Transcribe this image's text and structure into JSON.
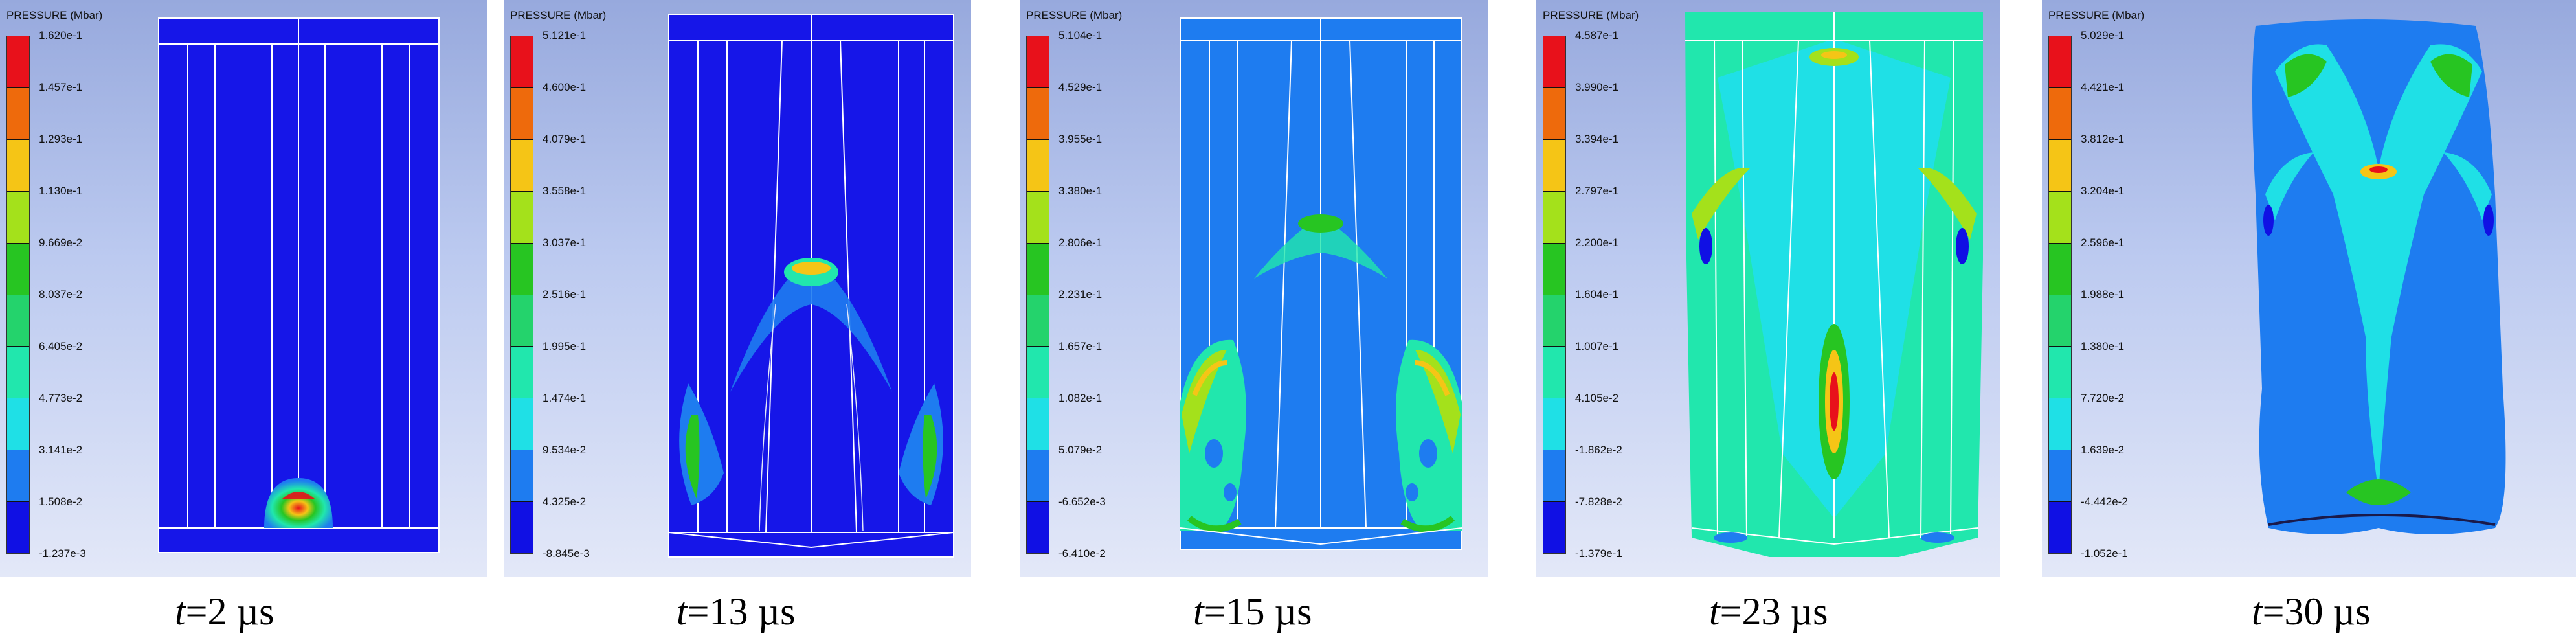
{
  "colorbar_title": "PRESSURE (Mbar)",
  "colors": [
    "#e8111b",
    "#ee6a0c",
    "#f5c516",
    "#a4e11b",
    "#27c522",
    "#24d36c",
    "#21e7ad",
    "#1fe0e6",
    "#1e7cf0",
    "#1010e4"
  ],
  "panels": [
    {
      "id": "t2",
      "time_label": "=2 µs",
      "ticks": [
        "1.620e-1",
        "1.457e-1",
        "1.293e-1",
        "1.130e-1",
        "9.669e-2",
        "8.037e-2",
        "6.405e-2",
        "4.773e-2",
        "3.141e-2",
        "1.508e-2",
        "-1.237e-3"
      ]
    },
    {
      "id": "t13",
      "time_label": "=13 µs",
      "ticks": [
        "5.121e-1",
        "4.600e-1",
        "4.079e-1",
        "3.558e-1",
        "3.037e-1",
        "2.516e-1",
        "1.995e-1",
        "1.474e-1",
        "9.534e-2",
        "4.325e-2",
        "-8.845e-3"
      ]
    },
    {
      "id": "t15",
      "time_label": "=15 µs",
      "ticks": [
        "5.104e-1",
        "4.529e-1",
        "3.955e-1",
        "3.380e-1",
        "2.806e-1",
        "2.231e-1",
        "1.657e-1",
        "1.082e-1",
        "5.079e-2",
        "-6.652e-3",
        "-6.410e-2"
      ]
    },
    {
      "id": "t23",
      "time_label": "=23 µs",
      "ticks": [
        "4.587e-1",
        "3.990e-1",
        "3.394e-1",
        "2.797e-1",
        "2.200e-1",
        "1.604e-1",
        "1.007e-1",
        "4.105e-2",
        "-1.862e-2",
        "-7.828e-2",
        "-1.379e-1"
      ]
    },
    {
      "id": "t30",
      "time_label": "=30 µs",
      "ticks": [
        "5.029e-1",
        "4.421e-1",
        "3.812e-1",
        "3.204e-1",
        "2.596e-1",
        "1.988e-1",
        "1.380e-1",
        "7.720e-2",
        "1.639e-2",
        "-4.442e-2",
        "-1.052e-1"
      ]
    }
  ],
  "time_symbol": "t"
}
